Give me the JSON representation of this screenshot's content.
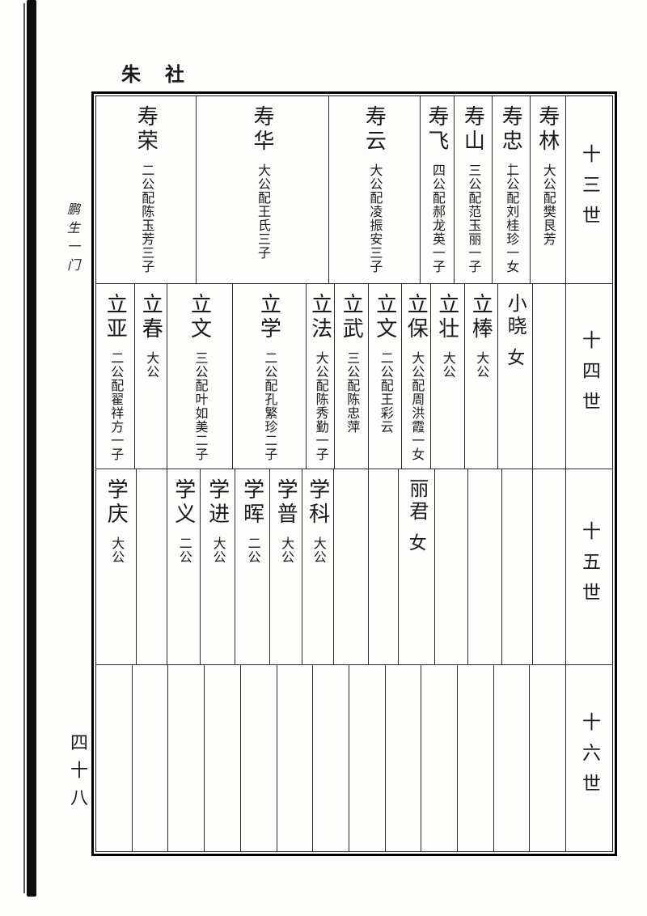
{
  "page": {
    "header_title": "朱 社",
    "margin_label": "鹏生一门",
    "page_number": "四十八"
  },
  "table": {
    "rows": [
      {
        "generation_label": "十三世",
        "entries": [
          {
            "name": "寿林",
            "detail": "大公配樊艮芳"
          },
          {
            "name": "寿忠",
            "strike": "二",
            "detail": "公配刘桂珍一女"
          },
          {
            "name": "寿山",
            "detail": "三公配范玉丽一子"
          },
          {
            "name": "寿飞",
            "detail": "四公配郝龙英一子"
          },
          {
            "name": "寿云",
            "detail": "大公配凌振安三子"
          },
          {
            "name": "寿华",
            "detail": "大公配王氏三子"
          },
          {
            "name": "寿荣",
            "detail": "二公配陈玉芳三子"
          }
        ]
      },
      {
        "generation_label": "十四世",
        "entries": [
          {
            "name": "",
            "detail": ""
          },
          {
            "name": "小晓",
            "detail": "女",
            "handwritten": true
          },
          {
            "name": "立棒",
            "detail": "大公"
          },
          {
            "name": "立壮",
            "detail": "大公"
          },
          {
            "name": "立保",
            "detail": "大公配周洪霞一女"
          },
          {
            "name": "立文",
            "detail": "二公配王彩云"
          },
          {
            "name": "立武",
            "detail": "三公配陈忠萍"
          },
          {
            "name": "立法",
            "detail": "大公配陈秀勤一子"
          },
          {
            "name": "立学",
            "detail": "二公配孔繁珍二子"
          },
          {
            "name": "立文",
            "detail": "三公配叶如美二子"
          },
          {
            "name": "立春",
            "detail": "大公"
          },
          {
            "name": "立亚",
            "detail": "二公配翟祥方一子"
          }
        ]
      },
      {
        "generation_label": "十五世",
        "entries": [
          {
            "name": "",
            "detail": ""
          },
          {
            "name": "",
            "detail": ""
          },
          {
            "name": "",
            "detail": ""
          },
          {
            "name": "",
            "detail": ""
          },
          {
            "name": "丽君",
            "detail": "女",
            "handwritten": true
          },
          {
            "name": "",
            "detail": ""
          },
          {
            "name": "",
            "detail": ""
          },
          {
            "name": "学科",
            "detail": "大公"
          },
          {
            "name": "学普",
            "detail": "大公"
          },
          {
            "name": "学晖",
            "detail": "二公"
          },
          {
            "name": "学进",
            "detail": "大公"
          },
          {
            "name": "学义",
            "detail": "二公"
          },
          {
            "name": "",
            "detail": ""
          },
          {
            "name": "学庆",
            "detail": "大公"
          }
        ]
      },
      {
        "generation_label": "十六世",
        "entries": [
          {
            "name": "",
            "detail": ""
          },
          {
            "name": "",
            "detail": ""
          },
          {
            "name": "",
            "detail": ""
          },
          {
            "name": "",
            "detail": ""
          },
          {
            "name": "",
            "detail": ""
          },
          {
            "name": "",
            "detail": ""
          },
          {
            "name": "",
            "detail": ""
          },
          {
            "name": "",
            "detail": ""
          },
          {
            "name": "",
            "detail": ""
          },
          {
            "name": "",
            "detail": ""
          },
          {
            "name": "",
            "detail": ""
          },
          {
            "name": "",
            "detail": ""
          },
          {
            "name": "",
            "detail": ""
          }
        ]
      }
    ]
  }
}
